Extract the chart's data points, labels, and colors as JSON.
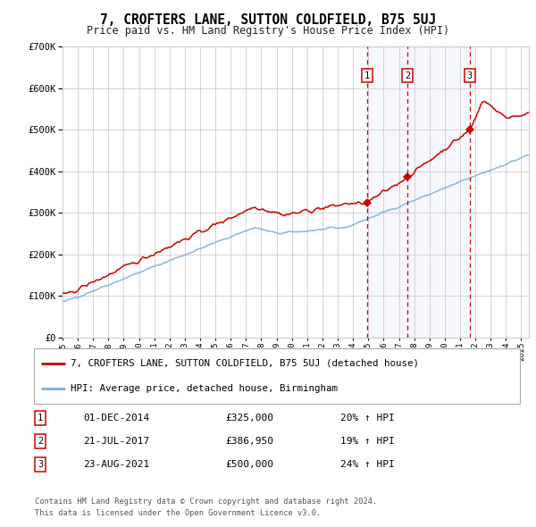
{
  "title": "7, CROFTERS LANE, SUTTON COLDFIELD, B75 5UJ",
  "subtitle": "Price paid vs. HM Land Registry's House Price Index (HPI)",
  "legend_line1": "7, CROFTERS LANE, SUTTON COLDFIELD, B75 5UJ (detached house)",
  "legend_line2": "HPI: Average price, detached house, Birmingham",
  "footer_line1": "Contains HM Land Registry data © Crown copyright and database right 2024.",
  "footer_line2": "This data is licensed under the Open Government Licence v3.0.",
  "sales": [
    {
      "label": "1",
      "date": "2014-12-01",
      "price": 325000,
      "pct": "20%",
      "marker_x": 2014.92
    },
    {
      "label": "2",
      "date": "2017-07-21",
      "price": 386950,
      "pct": "19%",
      "marker_x": 2017.55
    },
    {
      "label": "3",
      "date": "2021-08-23",
      "price": 500000,
      "pct": "24%",
      "marker_x": 2021.64
    }
  ],
  "sale_display": [
    {
      "num": "1",
      "date_str": "01-DEC-2014",
      "price_str": "£325,000",
      "pct_str": "20% ↑ HPI"
    },
    {
      "num": "2",
      "date_str": "21-JUL-2017",
      "price_str": "£386,950",
      "pct_str": "19% ↑ HPI"
    },
    {
      "num": "3",
      "date_str": "23-AUG-2021",
      "price_str": "£500,000",
      "pct_str": "24% ↑ HPI"
    }
  ],
  "red_line_color": "#cc0000",
  "blue_line_color": "#7ab0d4",
  "shade_color": "#ddeeff",
  "vline_color": "#cc0000",
  "grid_color": "#cccccc",
  "background_color": "#ffffff",
  "marker_color": "#cc0000",
  "ylim": [
    0,
    700000
  ],
  "xlim_start": 1995.0,
  "xlim_end": 2025.5
}
